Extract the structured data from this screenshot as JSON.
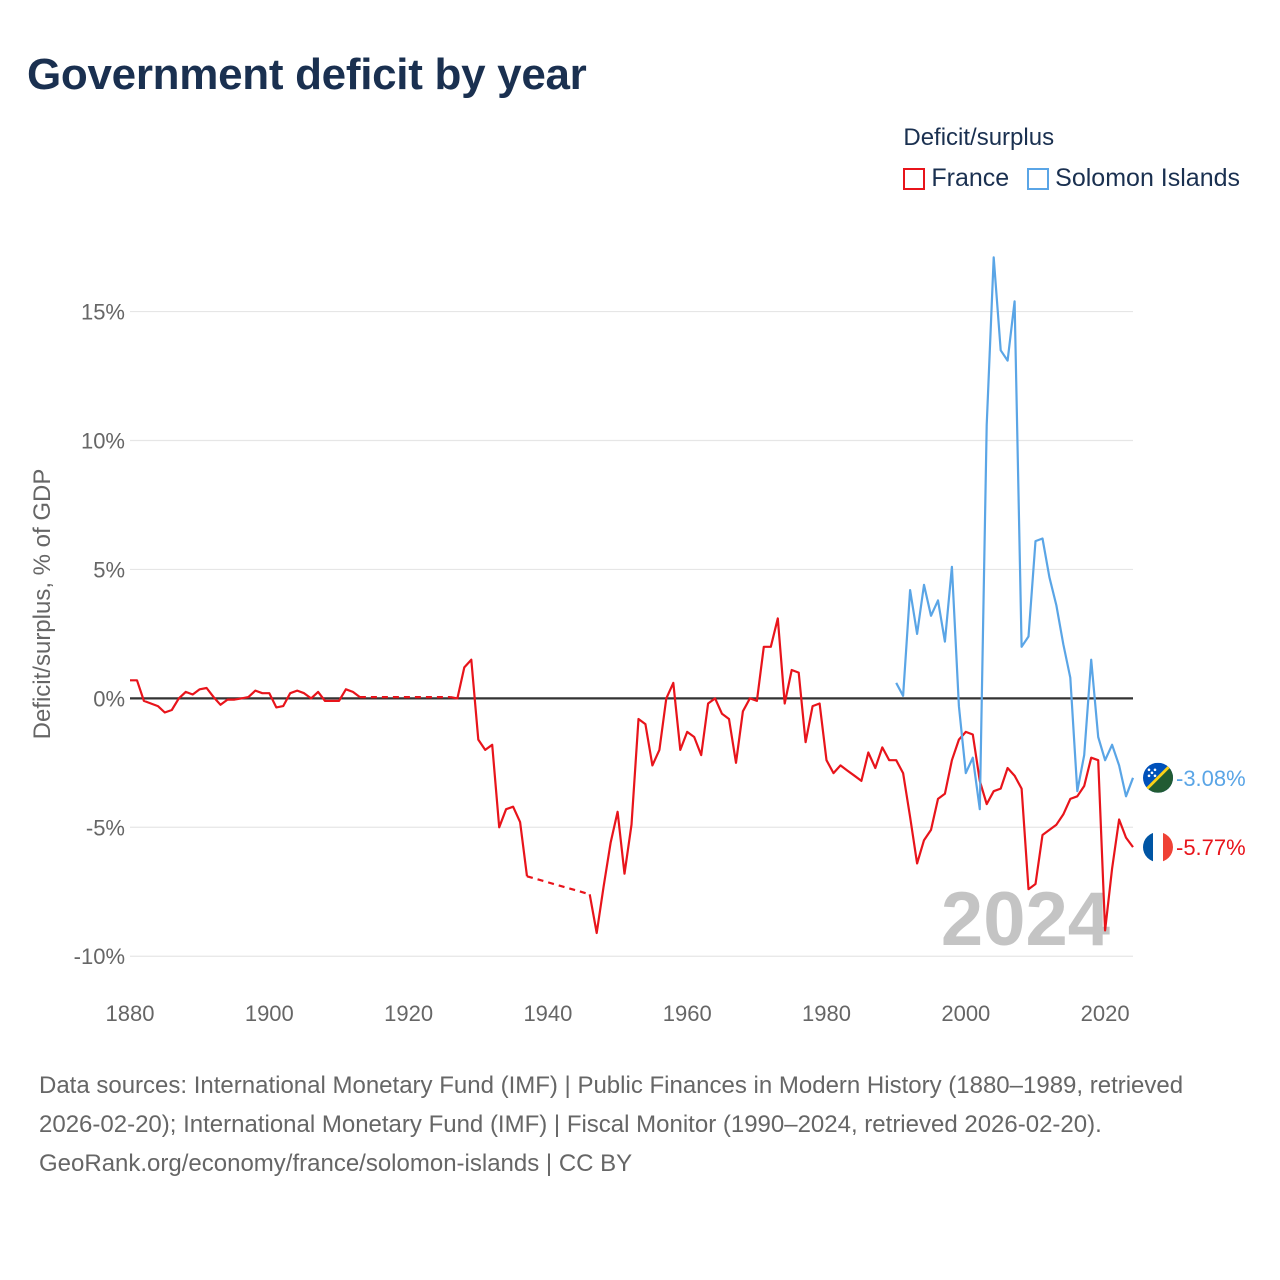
{
  "title": "Government deficit by year",
  "legend": {
    "title": "Deficit/surplus",
    "items": [
      {
        "label": "France",
        "color": "#e8141b"
      },
      {
        "label": "Solomon Islands",
        "color": "#5aa5e6"
      }
    ]
  },
  "year_watermark": "2024",
  "footer": {
    "sources": "Data sources: International Monetary Fund (IMF) | Public Finances in Modern History (1880–1989, retrieved 2026-02-20); International Monetary Fund (IMF) | Fiscal Monitor (1990–2024, retrieved 2026-02-20).",
    "credit": "GeoRank.org/economy/france/solomon-islands | CC BY"
  },
  "chart_data": {
    "type": "line",
    "title": "Government deficit by year",
    "ylabel": "Deficit/surplus, % of GDP",
    "xlabel": "",
    "xlim": [
      1880,
      2024
    ],
    "ylim": [
      -11,
      17
    ],
    "x_ticks": [
      1880,
      1900,
      1920,
      1940,
      1960,
      1980,
      2000,
      2020
    ],
    "x_tick_labels": [
      "1880",
      "1900",
      "1920",
      "1940",
      "1960",
      "1980",
      "2000",
      "2020"
    ],
    "y_ticks": [
      -10,
      -5,
      0,
      5,
      10,
      15
    ],
    "y_tick_labels": [
      "-10%",
      "-5%",
      "0%",
      "5%",
      "10%",
      "15%"
    ],
    "end_labels": [
      {
        "series": "Solomon Islands",
        "text": "-3.08%",
        "value": -3.08
      },
      {
        "series": "France",
        "text": "-5.77%",
        "value": -5.77
      }
    ],
    "series": [
      {
        "name": "France",
        "color": "#e8141b",
        "points": [
          [
            1880,
            0.7
          ],
          [
            1881,
            0.7
          ],
          [
            1882,
            -0.1
          ],
          [
            1883,
            -0.2
          ],
          [
            1884,
            -0.3
          ],
          [
            1885,
            -0.55
          ],
          [
            1886,
            -0.45
          ],
          [
            1887,
            0
          ],
          [
            1888,
            0.25
          ],
          [
            1889,
            0.15
          ],
          [
            1890,
            0.35
          ],
          [
            1891,
            0.4
          ],
          [
            1892,
            0.05
          ],
          [
            1893,
            -0.25
          ],
          [
            1894,
            -0.05
          ],
          [
            1895,
            -0.05
          ],
          [
            1896,
            0
          ],
          [
            1897,
            0.05
          ],
          [
            1898,
            0.3
          ],
          [
            1899,
            0.2
          ],
          [
            1900,
            0.2
          ],
          [
            1901,
            -0.35
          ],
          [
            1902,
            -0.3
          ],
          [
            1903,
            0.2
          ],
          [
            1904,
            0.3
          ],
          [
            1905,
            0.2
          ],
          [
            1906,
            0
          ],
          [
            1907,
            0.25
          ],
          [
            1908,
            -0.1
          ],
          [
            1909,
            -0.1
          ],
          [
            1910,
            -0.1
          ],
          [
            1911,
            0.35
          ],
          [
            1912,
            0.25
          ],
          [
            1913,
            0.05
          ],
          [
            1926,
            0.05
          ],
          [
            1927,
            0
          ],
          [
            1928,
            1.2
          ],
          [
            1929,
            1.5
          ],
          [
            1930,
            -1.6
          ],
          [
            1931,
            -2.0
          ],
          [
            1932,
            -1.8
          ],
          [
            1933,
            -5.0
          ],
          [
            1934,
            -4.3
          ],
          [
            1935,
            -4.2
          ],
          [
            1936,
            -4.8
          ],
          [
            1937,
            -6.9
          ],
          [
            1946,
            -7.6
          ],
          [
            1947,
            -9.1
          ],
          [
            1948,
            -7.3
          ],
          [
            1949,
            -5.6
          ],
          [
            1950,
            -4.4
          ],
          [
            1951,
            -6.8
          ],
          [
            1952,
            -4.9
          ],
          [
            1953,
            -0.8
          ],
          [
            1954,
            -1.0
          ],
          [
            1955,
            -2.6
          ],
          [
            1956,
            -2.0
          ],
          [
            1957,
            0
          ],
          [
            1958,
            0.6
          ],
          [
            1959,
            -2.0
          ],
          [
            1960,
            -1.3
          ],
          [
            1961,
            -1.5
          ],
          [
            1962,
            -2.2
          ],
          [
            1963,
            -0.2
          ],
          [
            1964,
            0
          ],
          [
            1965,
            -0.6
          ],
          [
            1966,
            -0.8
          ],
          [
            1967,
            -2.5
          ],
          [
            1968,
            -0.5
          ],
          [
            1969,
            0
          ],
          [
            1970,
            -0.1
          ],
          [
            1971,
            2.0
          ],
          [
            1972,
            2.0
          ],
          [
            1973,
            3.1
          ],
          [
            1974,
            -0.2
          ],
          [
            1975,
            1.1
          ],
          [
            1976,
            1.0
          ],
          [
            1977,
            -1.7
          ],
          [
            1978,
            -0.3
          ],
          [
            1979,
            -0.2
          ],
          [
            1980,
            -2.4
          ],
          [
            1981,
            -2.9
          ],
          [
            1982,
            -2.6
          ],
          [
            1983,
            -2.8
          ],
          [
            1984,
            -3.0
          ],
          [
            1985,
            -3.2
          ],
          [
            1986,
            -2.1
          ],
          [
            1987,
            -2.7
          ],
          [
            1988,
            -1.9
          ],
          [
            1989,
            -2.4
          ],
          [
            1990,
            -2.4
          ],
          [
            1991,
            -2.9
          ],
          [
            1992,
            -4.6
          ],
          [
            1993,
            -6.4
          ],
          [
            1994,
            -5.5
          ],
          [
            1995,
            -5.1
          ],
          [
            1996,
            -3.9
          ],
          [
            1997,
            -3.7
          ],
          [
            1998,
            -2.4
          ],
          [
            1999,
            -1.6
          ],
          [
            2000,
            -1.3
          ],
          [
            2001,
            -1.4
          ],
          [
            2002,
            -3.2
          ],
          [
            2003,
            -4.1
          ],
          [
            2004,
            -3.6
          ],
          [
            2005,
            -3.5
          ],
          [
            2006,
            -2.7
          ],
          [
            2007,
            -3.0
          ],
          [
            2008,
            -3.5
          ],
          [
            2009,
            -7.4
          ],
          [
            2010,
            -7.2
          ],
          [
            2011,
            -5.3
          ],
          [
            2012,
            -5.1
          ],
          [
            2013,
            -4.9
          ],
          [
            2014,
            -4.5
          ],
          [
            2015,
            -3.9
          ],
          [
            2016,
            -3.8
          ],
          [
            2017,
            -3.4
          ],
          [
            2018,
            -2.3
          ],
          [
            2019,
            -2.4
          ],
          [
            2020,
            -9.0
          ],
          [
            2021,
            -6.6
          ],
          [
            2022,
            -4.7
          ],
          [
            2023,
            -5.4
          ],
          [
            2024,
            -5.77
          ]
        ],
        "interpolated_gaps": [
          [
            1913,
            1926
          ],
          [
            1937,
            1946
          ]
        ]
      },
      {
        "name": "Solomon Islands",
        "color": "#5aa5e6",
        "points": [
          [
            1990,
            0.6
          ],
          [
            1991,
            0.1
          ],
          [
            1992,
            4.2
          ],
          [
            1993,
            2.5
          ],
          [
            1994,
            4.4
          ],
          [
            1995,
            3.2
          ],
          [
            1996,
            3.8
          ],
          [
            1997,
            2.2
          ],
          [
            1998,
            5.1
          ],
          [
            1999,
            -0.3
          ],
          [
            2000,
            -2.9
          ],
          [
            2001,
            -2.3
          ],
          [
            2002,
            -4.3
          ],
          [
            2003,
            10.6
          ],
          [
            2004,
            17.1
          ],
          [
            2005,
            13.5
          ],
          [
            2006,
            13.1
          ],
          [
            2007,
            15.4
          ],
          [
            2008,
            2.0
          ],
          [
            2009,
            2.4
          ],
          [
            2010,
            6.1
          ],
          [
            2011,
            6.2
          ],
          [
            2012,
            4.7
          ],
          [
            2013,
            3.6
          ],
          [
            2014,
            2.1
          ],
          [
            2015,
            0.8
          ],
          [
            2016,
            -3.6
          ],
          [
            2017,
            -2.2
          ],
          [
            2018,
            1.5
          ],
          [
            2019,
            -1.5
          ],
          [
            2020,
            -2.4
          ],
          [
            2021,
            -1.8
          ],
          [
            2022,
            -2.6
          ],
          [
            2023,
            -3.8
          ],
          [
            2024,
            -3.08
          ]
        ],
        "interpolated_gaps": []
      }
    ]
  }
}
